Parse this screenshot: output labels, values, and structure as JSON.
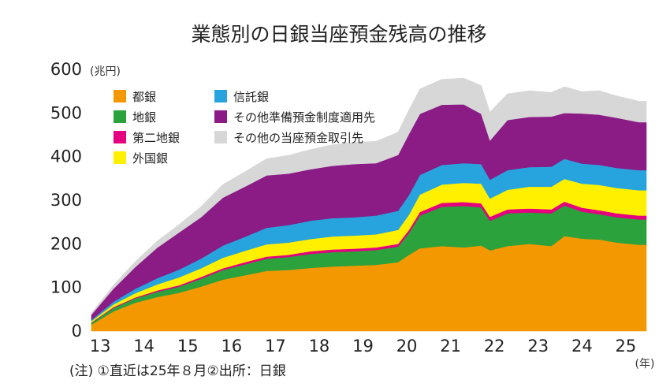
{
  "chart_data": {
    "type": "area",
    "stacked": true,
    "title": "業態別の日銀当座預金残高の推移",
    "ylabel": "(兆円)",
    "xlabel": "(年)",
    "note": "(注) ①直近は25年８月②出所：日銀",
    "ylim": [
      0,
      600
    ],
    "yticks": [
      0,
      100,
      200,
      300,
      400,
      500,
      600
    ],
    "xlim": [
      2013.0,
      2025.67
    ],
    "xtick_labels": [
      "13",
      "14",
      "15",
      "16",
      "17",
      "18",
      "19",
      "20",
      "21",
      "22",
      "23",
      "24",
      "25"
    ],
    "xtick_values": [
      2013.2,
      2014.2,
      2015.2,
      2016.2,
      2017.2,
      2018.2,
      2019.2,
      2020.2,
      2021.2,
      2022.2,
      2023.2,
      2024.2,
      2025.2
    ],
    "grid": false,
    "legend_position": "top-left",
    "x": [
      2013.0,
      2013.5,
      2014.0,
      2014.5,
      2015.0,
      2015.5,
      2016.0,
      2016.5,
      2017.0,
      2017.5,
      2018.0,
      2018.5,
      2019.0,
      2019.5,
      2020.0,
      2020.25,
      2020.5,
      2021.0,
      2021.5,
      2021.9,
      2022.1,
      2022.5,
      2023.0,
      2023.5,
      2023.8,
      2024.2,
      2024.6,
      2025.0,
      2025.5,
      2025.67
    ],
    "series": [
      {
        "name": "都銀",
        "color": "#f39800",
        "values": [
          15,
          45,
          65,
          78,
          88,
          102,
          118,
          128,
          138,
          140,
          145,
          148,
          150,
          152,
          158,
          175,
          190,
          195,
          192,
          196,
          185,
          195,
          200,
          195,
          218,
          212,
          210,
          203,
          198,
          198
        ]
      },
      {
        "name": "地銀",
        "color": "#2ca23c",
        "values": [
          4,
          8,
          10,
          12,
          14,
          18,
          22,
          25,
          28,
          30,
          32,
          33,
          33,
          34,
          36,
          50,
          75,
          90,
          95,
          88,
          68,
          75,
          72,
          75,
          70,
          62,
          58,
          58,
          58,
          58
        ]
      },
      {
        "name": "第二地銀",
        "color": "#e4007f",
        "values": [
          1,
          2,
          2,
          3,
          3,
          4,
          4,
          5,
          5,
          5,
          6,
          6,
          6,
          6,
          6,
          7,
          8,
          9,
          9,
          9,
          9,
          9,
          9,
          9,
          9,
          9,
          9,
          9,
          9,
          9
        ]
      },
      {
        "name": "外国銀",
        "color": "#fff000",
        "values": [
          3,
          6,
          10,
          14,
          18,
          20,
          24,
          26,
          28,
          28,
          28,
          30,
          30,
          30,
          32,
          35,
          40,
          42,
          44,
          45,
          42,
          45,
          50,
          52,
          52,
          55,
          58,
          58,
          58,
          58
        ]
      },
      {
        "name": "信託銀",
        "color": "#27a4dd",
        "values": [
          3,
          6,
          10,
          14,
          18,
          22,
          28,
          32,
          38,
          40,
          42,
          42,
          42,
          43,
          44,
          45,
          45,
          45,
          45,
          45,
          43,
          45,
          45,
          46,
          46,
          46,
          46,
          46,
          46,
          46
        ]
      },
      {
        "name": "その他準備預金制度適用先",
        "color": "#8b1c86",
        "values": [
          12,
          30,
          50,
          70,
          85,
          95,
          110,
          115,
          120,
          118,
          118,
          120,
          122,
          120,
          128,
          140,
          140,
          138,
          135,
          115,
          90,
          115,
          115,
          115,
          105,
          115,
          115,
          115,
          110,
          110
        ]
      },
      {
        "name": "その他の当座預金取引先",
        "color": "#d7d7d7",
        "values": [
          3,
          8,
          12,
          15,
          18,
          24,
          30,
          34,
          38,
          42,
          45,
          48,
          50,
          50,
          52,
          55,
          57,
          58,
          60,
          65,
          65,
          60,
          60,
          55,
          60,
          50,
          55,
          50,
          48,
          48
        ]
      }
    ]
  }
}
